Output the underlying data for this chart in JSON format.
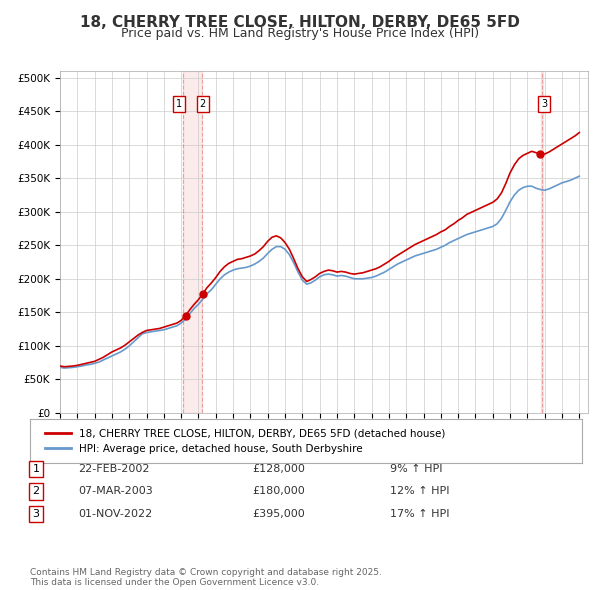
{
  "title": "18, CHERRY TREE CLOSE, HILTON, DERBY, DE65 5FD",
  "subtitle": "Price paid vs. HM Land Registry's House Price Index (HPI)",
  "title_fontsize": 11,
  "subtitle_fontsize": 9,
  "xlabel": "",
  "ylabel": "",
  "ylim": [
    0,
    510000
  ],
  "xlim_start": 1995.0,
  "xlim_end": 2025.5,
  "yticks": [
    0,
    50000,
    100000,
    150000,
    200000,
    250000,
    300000,
    350000,
    400000,
    450000,
    500000
  ],
  "ytick_labels": [
    "£0",
    "£50K",
    "£100K",
    "£150K",
    "£200K",
    "£250K",
    "£300K",
    "£350K",
    "£400K",
    "£450K",
    "£500K"
  ],
  "red_line_color": "#cc0000",
  "blue_line_color": "#6699cc",
  "grid_color": "#cccccc",
  "bg_color": "#ffffff",
  "legend_label_red": "18, CHERRY TREE CLOSE, HILTON, DERBY, DE65 5FD (detached house)",
  "legend_label_blue": "HPI: Average price, detached house, South Derbyshire",
  "transactions": [
    {
      "num": 1,
      "date": "22-FEB-2002",
      "price": "£128,000",
      "pct": "9% ↑ HPI",
      "year": 2002.13,
      "value": 128000
    },
    {
      "num": 2,
      "date": "07-MAR-2003",
      "price": "£180,000",
      "pct": "12% ↑ HPI",
      "year": 2003.19,
      "value": 180000
    },
    {
      "num": 3,
      "date": "01-NOV-2022",
      "price": "£395,000",
      "pct": "17% ↑ HPI",
      "year": 2022.83,
      "value": 395000
    }
  ],
  "vline_color": "#cc0000",
  "vline_alpha": 0.3,
  "footnote": "Contains HM Land Registry data © Crown copyright and database right 2025.\nThis data is licensed under the Open Government Licence v3.0.",
  "hpi_years": [
    1995.0,
    1995.25,
    1995.5,
    1995.75,
    1996.0,
    1996.25,
    1996.5,
    1996.75,
    1997.0,
    1997.25,
    1997.5,
    1997.75,
    1998.0,
    1998.25,
    1998.5,
    1998.75,
    1999.0,
    1999.25,
    1999.5,
    1999.75,
    2000.0,
    2000.25,
    2000.5,
    2000.75,
    2001.0,
    2001.25,
    2001.5,
    2001.75,
    2002.0,
    2002.25,
    2002.5,
    2002.75,
    2003.0,
    2003.25,
    2003.5,
    2003.75,
    2004.0,
    2004.25,
    2004.5,
    2004.75,
    2005.0,
    2005.25,
    2005.5,
    2005.75,
    2006.0,
    2006.25,
    2006.5,
    2006.75,
    2007.0,
    2007.25,
    2007.5,
    2007.75,
    2008.0,
    2008.25,
    2008.5,
    2008.75,
    2009.0,
    2009.25,
    2009.5,
    2009.75,
    2010.0,
    2010.25,
    2010.5,
    2010.75,
    2011.0,
    2011.25,
    2011.5,
    2011.75,
    2012.0,
    2012.25,
    2012.5,
    2012.75,
    2013.0,
    2013.25,
    2013.5,
    2013.75,
    2014.0,
    2014.25,
    2014.5,
    2014.75,
    2015.0,
    2015.25,
    2015.5,
    2015.75,
    2016.0,
    2016.25,
    2016.5,
    2016.75,
    2017.0,
    2017.25,
    2017.5,
    2017.75,
    2018.0,
    2018.25,
    2018.5,
    2018.75,
    2019.0,
    2019.25,
    2019.5,
    2019.75,
    2020.0,
    2020.25,
    2020.5,
    2020.75,
    2021.0,
    2021.25,
    2021.5,
    2021.75,
    2022.0,
    2022.25,
    2022.5,
    2022.75,
    2023.0,
    2023.25,
    2023.5,
    2023.75,
    2024.0,
    2024.25,
    2024.5,
    2024.75,
    2025.0
  ],
  "hpi_values": [
    68000,
    67000,
    67500,
    68000,
    69000,
    70000,
    71500,
    72500,
    74000,
    76000,
    79000,
    82000,
    85000,
    88000,
    91000,
    95000,
    100000,
    106000,
    112000,
    118000,
    120000,
    121000,
    122000,
    123000,
    124000,
    126000,
    128000,
    130000,
    134000,
    140000,
    148000,
    156000,
    162000,
    170000,
    178000,
    184000,
    192000,
    200000,
    206000,
    210000,
    213000,
    215000,
    216000,
    217000,
    219000,
    222000,
    226000,
    231000,
    238000,
    244000,
    248000,
    248000,
    244000,
    236000,
    224000,
    210000,
    198000,
    192000,
    194000,
    198000,
    203000,
    206000,
    207000,
    206000,
    204000,
    205000,
    204000,
    202000,
    200000,
    200000,
    200000,
    201000,
    202000,
    204000,
    207000,
    210000,
    214000,
    218000,
    222000,
    225000,
    228000,
    231000,
    234000,
    236000,
    238000,
    240000,
    242000,
    244000,
    247000,
    250000,
    254000,
    257000,
    260000,
    263000,
    266000,
    268000,
    270000,
    272000,
    274000,
    276000,
    278000,
    282000,
    290000,
    302000,
    315000,
    325000,
    332000,
    336000,
    338000,
    338000,
    335000,
    333000,
    332000,
    334000,
    337000,
    340000,
    343000,
    345000,
    347000,
    350000,
    353000
  ],
  "red_years": [
    1995.0,
    1995.25,
    1995.5,
    1995.75,
    1996.0,
    1996.25,
    1996.5,
    1996.75,
    1997.0,
    1997.25,
    1997.5,
    1997.75,
    1998.0,
    1998.25,
    1998.5,
    1998.75,
    1999.0,
    1999.25,
    1999.5,
    1999.75,
    2000.0,
    2000.25,
    2000.5,
    2000.75,
    2001.0,
    2001.25,
    2001.5,
    2001.75,
    2002.0,
    2002.25,
    2002.5,
    2002.75,
    2003.0,
    2003.25,
    2003.5,
    2003.75,
    2004.0,
    2004.25,
    2004.5,
    2004.75,
    2005.0,
    2005.25,
    2005.5,
    2005.75,
    2006.0,
    2006.25,
    2006.5,
    2006.75,
    2007.0,
    2007.25,
    2007.5,
    2007.75,
    2008.0,
    2008.25,
    2008.5,
    2008.75,
    2009.0,
    2009.25,
    2009.5,
    2009.75,
    2010.0,
    2010.25,
    2010.5,
    2010.75,
    2011.0,
    2011.25,
    2011.5,
    2011.75,
    2012.0,
    2012.25,
    2012.5,
    2012.75,
    2013.0,
    2013.25,
    2013.5,
    2013.75,
    2014.0,
    2014.25,
    2014.5,
    2014.75,
    2015.0,
    2015.25,
    2015.5,
    2015.75,
    2016.0,
    2016.25,
    2016.5,
    2016.75,
    2017.0,
    2017.25,
    2017.5,
    2017.75,
    2018.0,
    2018.25,
    2018.5,
    2018.75,
    2019.0,
    2019.25,
    2019.5,
    2019.75,
    2020.0,
    2020.25,
    2020.5,
    2020.75,
    2021.0,
    2021.25,
    2021.5,
    2021.75,
    2022.0,
    2022.25,
    2022.5,
    2022.75,
    2023.0,
    2023.25,
    2023.5,
    2023.75,
    2024.0,
    2024.25,
    2024.5,
    2024.75,
    2025.0
  ],
  "red_values": [
    70000,
    69000,
    69500,
    70000,
    71000,
    72500,
    74000,
    75500,
    77000,
    80000,
    83000,
    87000,
    91000,
    94000,
    97000,
    101000,
    106000,
    111000,
    116000,
    120000,
    123000,
    124000,
    125000,
    126000,
    128000,
    130000,
    132000,
    134000,
    138000,
    145000,
    154000,
    162000,
    169000,
    178000,
    187000,
    194000,
    202000,
    211000,
    218000,
    223000,
    226000,
    229000,
    230000,
    232000,
    234000,
    237000,
    242000,
    248000,
    256000,
    262000,
    264000,
    261000,
    254000,
    244000,
    230000,
    215000,
    203000,
    196000,
    199000,
    203000,
    208000,
    211000,
    213000,
    212000,
    210000,
    211000,
    210000,
    208000,
    207000,
    208000,
    209000,
    211000,
    213000,
    215000,
    218000,
    222000,
    226000,
    231000,
    235000,
    239000,
    243000,
    247000,
    251000,
    254000,
    257000,
    260000,
    263000,
    266000,
    270000,
    273000,
    278000,
    282000,
    287000,
    291000,
    296000,
    299000,
    302000,
    305000,
    308000,
    311000,
    314000,
    319000,
    328000,
    342000,
    358000,
    370000,
    379000,
    384000,
    387000,
    390000,
    388000,
    386000,
    386000,
    389000,
    393000,
    397000,
    401000,
    405000,
    409000,
    413000,
    418000
  ]
}
